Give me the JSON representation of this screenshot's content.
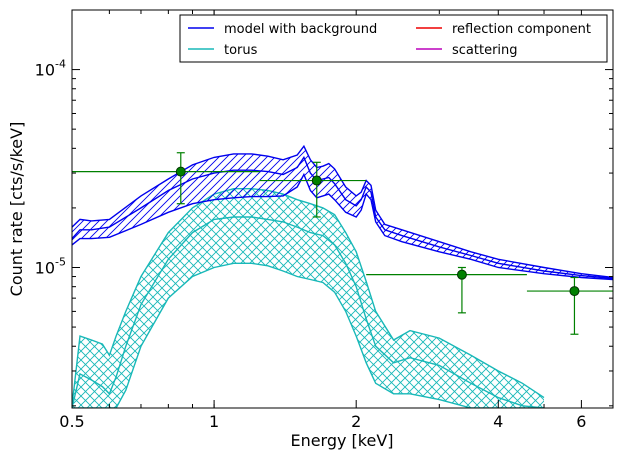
{
  "chart_data": {
    "type": "line",
    "xlabel": "Energy [keV]",
    "ylabel": "Count rate [cts/s/keV]",
    "xscale": "log",
    "yscale": "log",
    "xlim": [
      0.5,
      7.0
    ],
    "ylim": [
      1.95e-06,
      0.0002
    ],
    "x_ticks": [
      0.5,
      1,
      2,
      4,
      6
    ],
    "x_tick_labels": [
      "0.5",
      "1",
      "2",
      "4",
      "6"
    ],
    "y_ticks": [
      1e-05,
      0.0001
    ],
    "y_tick_labels": [
      {
        "base": "10",
        "exp": "-5"
      },
      {
        "base": "10",
        "exp": "-4"
      }
    ],
    "legend": {
      "placement": "top-right",
      "columns": 2,
      "entries": [
        {
          "label": "model with background",
          "color": "#0000ee"
        },
        {
          "label": "torus",
          "color": "#18b8b8"
        },
        {
          "label": "reflection component",
          "color": "#ee0000"
        },
        {
          "label": "scattering",
          "color": "#bb00bb"
        }
      ]
    },
    "series": [
      {
        "name": "model with background",
        "color": "#0000ee",
        "band": true,
        "hatch": "diagonal",
        "x": [
          0.5,
          0.52,
          0.55,
          0.6,
          0.7,
          0.8,
          0.9,
          1.0,
          1.1,
          1.2,
          1.3,
          1.4,
          1.5,
          1.55,
          1.6,
          1.65,
          1.7,
          1.75,
          1.8,
          1.9,
          2.0,
          2.05,
          2.1,
          2.15,
          2.2,
          2.3,
          2.5,
          3.0,
          3.5,
          4.0,
          5.0,
          6.0,
          7.0
        ],
        "upper": [
          1.6e-05,
          1.75e-05,
          1.72e-05,
          1.75e-05,
          2.3e-05,
          2.8e-05,
          3.3e-05,
          3.6e-05,
          3.75e-05,
          3.75e-05,
          3.65e-05,
          3.5e-05,
          3.7e-05,
          4.1e-05,
          3.5e-05,
          3.2e-05,
          3.25e-05,
          3.35e-05,
          3.15e-05,
          2.55e-05,
          2.3e-05,
          2.4e-05,
          2.75e-05,
          2.6e-05,
          1.95e-05,
          1.65e-05,
          1.55e-05,
          1.35e-05,
          1.2e-05,
          1.1e-05,
          1e-05,
          9.3e-06,
          8.9e-06
        ],
        "mid": [
          1.4e-05,
          1.55e-05,
          1.55e-05,
          1.6e-05,
          2e-05,
          2.45e-05,
          2.8e-05,
          3e-05,
          3.1e-05,
          3.1e-05,
          3.05e-05,
          2.95e-05,
          3.2e-05,
          3.6e-05,
          3e-05,
          2.75e-05,
          2.8e-05,
          2.85e-05,
          2.65e-05,
          2.2e-05,
          2.05e-05,
          2.2e-05,
          2.55e-05,
          2.4e-05,
          1.8e-05,
          1.55e-05,
          1.45e-05,
          1.27e-05,
          1.15e-05,
          1.05e-05,
          9.6e-06,
          9.1e-06,
          8.8e-06
        ],
        "lower": [
          1.3e-05,
          1.4e-05,
          1.4e-05,
          1.42e-05,
          1.65e-05,
          1.9e-05,
          2.1e-05,
          2.2e-05,
          2.25e-05,
          2.28e-05,
          2.28e-05,
          2.3e-05,
          2.55e-05,
          2.95e-05,
          2.45e-05,
          2.25e-05,
          2.3e-05,
          2.35e-05,
          2.2e-05,
          1.9e-05,
          1.8e-05,
          1.95e-05,
          2.35e-05,
          2.2e-05,
          1.7e-05,
          1.45e-05,
          1.35e-05,
          1.2e-05,
          1.1e-05,
          1e-05,
          9.3e-06,
          8.9e-06,
          8.7e-06
        ]
      },
      {
        "name": "torus",
        "color": "#18b8b8",
        "band": true,
        "hatch": "crosshatch",
        "x": [
          0.5,
          0.52,
          0.55,
          0.58,
          0.6,
          0.62,
          0.65,
          0.7,
          0.8,
          0.9,
          1.0,
          1.1,
          1.2,
          1.3,
          1.4,
          1.5,
          1.6,
          1.7,
          1.8,
          1.9,
          2.0,
          2.1,
          2.2,
          2.4,
          2.6,
          3.0,
          3.5,
          4.0,
          4.5,
          5.0
        ],
        "upper": [
          2e-06,
          4.5e-06,
          4.3e-06,
          4.1e-06,
          3.6e-06,
          4.5e-06,
          6e-06,
          9e-06,
          1.5e-05,
          2e-05,
          2.35e-05,
          2.5e-05,
          2.5e-05,
          2.45e-05,
          2.35e-05,
          2.2e-05,
          2.1e-05,
          2e-05,
          1.85e-05,
          1.5e-05,
          1.2e-05,
          8.5e-06,
          6e-06,
          4.3e-06,
          4.8e-06,
          4.4e-06,
          3.6e-06,
          3e-06,
          2.6e-06,
          2.2e-06
        ],
        "mid": [
          1.95e-06,
          2.9e-06,
          2.7e-06,
          2.5e-06,
          2.3e-06,
          2.8e-06,
          4e-06,
          6.5e-06,
          1.1e-05,
          1.5e-05,
          1.75e-05,
          1.8e-05,
          1.8e-05,
          1.75e-05,
          1.7e-05,
          1.6e-05,
          1.5e-05,
          1.45e-05,
          1.3e-05,
          1.05e-05,
          8e-06,
          5.5e-06,
          4e-06,
          3.3e-06,
          3.5e-06,
          3.2e-06,
          2.6e-06,
          2.2e-06,
          2e-06,
          1.95e-06
        ],
        "lower": [
          1.95e-06,
          1.95e-06,
          1.95e-06,
          1.95e-06,
          1.95e-06,
          1.95e-06,
          2.4e-06,
          4e-06,
          7e-06,
          9e-06,
          1e-05,
          1.05e-05,
          1.05e-05,
          1.02e-05,
          9.6e-06,
          9e-06,
          8.7e-06,
          8.4e-06,
          7.5e-06,
          6e-06,
          4.5e-06,
          3.3e-06,
          2.6e-06,
          2.3e-06,
          2.3e-06,
          2.15e-06,
          1.95e-06,
          1.95e-06,
          1.95e-06,
          1.95e-06
        ]
      }
    ],
    "data_points": {
      "color": "#008000",
      "points": [
        {
          "x": 0.85,
          "y": 3.05e-05,
          "xerr_low": 0.5,
          "xerr_high": 1.25,
          "yerr_low": 2.1e-05,
          "yerr_high": 3.8e-05
        },
        {
          "x": 1.65,
          "y": 2.75e-05,
          "xerr_low": 1.25,
          "xerr_high": 2.1,
          "yerr_low": 1.8e-05,
          "yerr_high": 3.4e-05
        },
        {
          "x": 3.35,
          "y": 9.2e-06,
          "xerr_low": 2.1,
          "xerr_high": 4.6,
          "yerr_low": 5.9e-06,
          "yerr_high": 1e-05
        },
        {
          "x": 5.8,
          "y": 7.6e-06,
          "xerr_low": 4.6,
          "xerr_high": 7.0,
          "yerr_low": 4.6e-06,
          "yerr_high": 8.9e-06
        }
      ]
    }
  }
}
